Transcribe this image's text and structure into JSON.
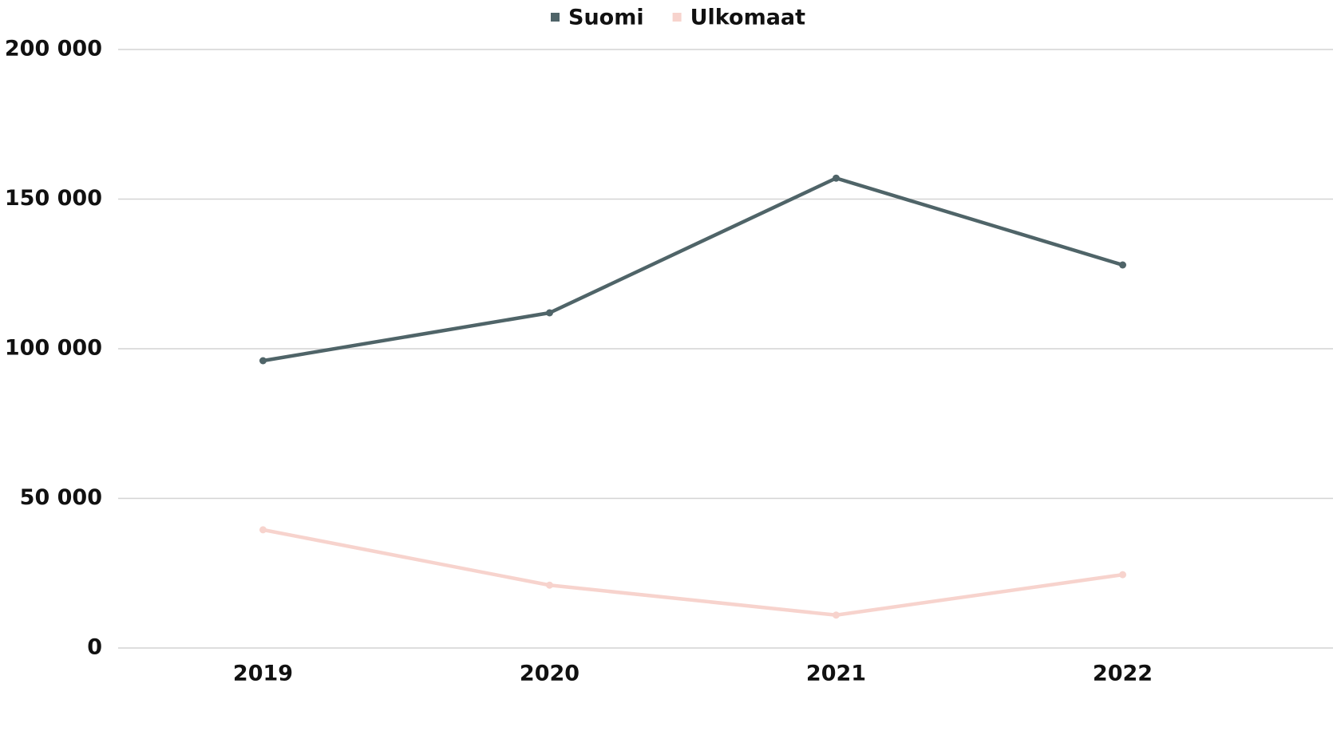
{
  "chart_data": {
    "type": "line",
    "categories": [
      "2019",
      "2020",
      "2021",
      "2022"
    ],
    "series": [
      {
        "name": "Suomi",
        "color": "#4f6468",
        "values": [
          96000,
          112000,
          157000,
          128000
        ]
      },
      {
        "name": "Ulkomaat",
        "color": "#f7d3cd",
        "values": [
          39500,
          21000,
          11000,
          24500
        ]
      }
    ],
    "ylim": [
      0,
      200000
    ],
    "yticks": [
      0,
      {
        "value": 50000,
        "label": "50 000"
      },
      {
        "value": 100000,
        "label": "100 000"
      },
      {
        "value": 150000,
        "label": "150 000"
      },
      {
        "value": 200000,
        "label": "200 000"
      }
    ],
    "grid": true,
    "legend": "top"
  }
}
